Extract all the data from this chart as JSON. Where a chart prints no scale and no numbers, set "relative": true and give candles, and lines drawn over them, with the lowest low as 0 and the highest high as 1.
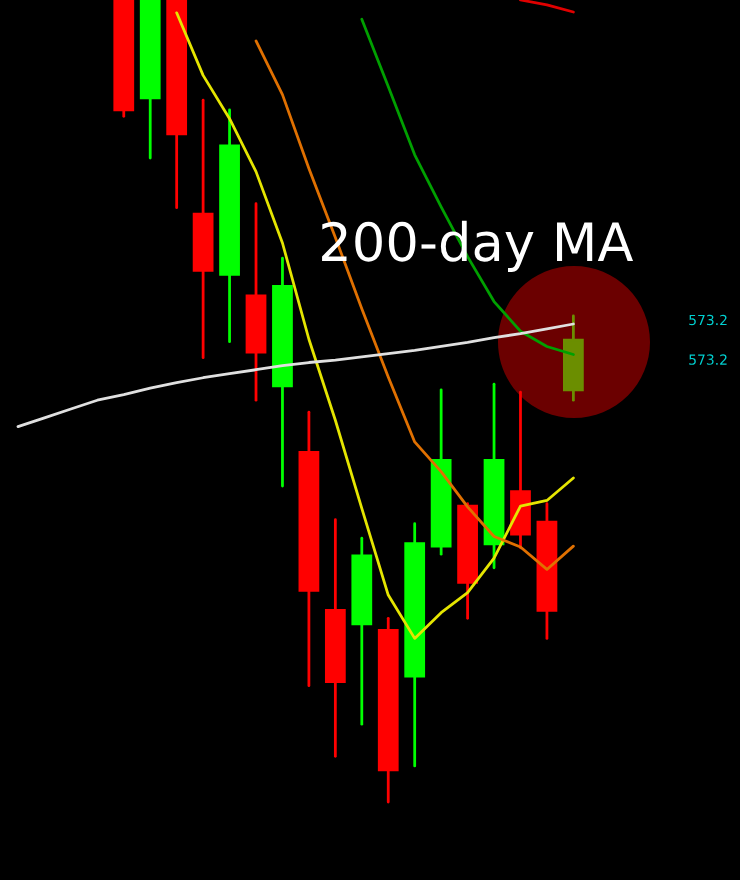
{
  "chart_data": {
    "type": "candlestick",
    "relative": true,
    "categories": [
      null,
      null,
      null,
      null,
      null,
      null,
      null,
      null,
      null,
      null,
      null,
      null,
      null,
      null,
      null,
      null,
      null,
      null,
      null,
      null,
      null,
      null
    ],
    "ohlc": [
      null,
      null,
      null,
      null,
      [
        1.0,
        1.0,
        0.855,
        0.863
      ],
      [
        0.878,
        1.0,
        0.803,
        1.0
      ],
      [
        1.0,
        1.0,
        0.741,
        0.833
      ],
      [
        0.733,
        0.875,
        0.554,
        0.663
      ],
      [
        0.658,
        0.863,
        0.574,
        0.818
      ],
      [
        0.631,
        0.746,
        0.501,
        0.561
      ],
      [
        0.519,
        0.678,
        0.394,
        0.643
      ],
      [
        0.436,
        0.486,
        0.145,
        0.264
      ],
      [
        0.239,
        0.352,
        0.057,
        0.15
      ],
      [
        0.222,
        0.329,
        0.097,
        0.307
      ],
      [
        0.214,
        0.229,
        0.0,
        0.04
      ],
      [
        0.157,
        0.347,
        0.045,
        0.322
      ],
      [
        0.319,
        0.514,
        0.309,
        0.426
      ],
      [
        0.369,
        0.372,
        0.229,
        0.274
      ],
      [
        0.322,
        0.521,
        0.292,
        0.426
      ],
      [
        0.387,
        0.511,
        0.317,
        0.334
      ],
      [
        0.349,
        0.372,
        0.204,
        0.239
      ],
      [
        0.514,
        0.606,
        0.501,
        0.576
      ]
    ],
    "colors": [
      null,
      null,
      null,
      null,
      "#ff0000",
      "#00ff00",
      "#ff0000",
      "#ff0000",
      "#00ff00",
      "#ff0000",
      "#00ff00",
      "#ff0000",
      "#ff0000",
      "#00ff00",
      "#ff0000",
      "#00ff00",
      "#00ff00",
      "#ff0000",
      "#00ff00",
      "#ff0000",
      "#ff0000",
      "#6b8e00"
    ],
    "series": [
      {
        "type": "line",
        "color": "#e5e500",
        "values": [
          null,
          null,
          null,
          null,
          null,
          null,
          0.984,
          0.906,
          0.852,
          0.786,
          0.697,
          0.577,
          0.476,
          0.366,
          0.258,
          0.204,
          0.236,
          0.261,
          0.304,
          0.369,
          0.376,
          0.404
        ]
      },
      {
        "type": "line",
        "color": "#e07000",
        "values": [
          null,
          null,
          null,
          null,
          null,
          null,
          null,
          null,
          null,
          0.949,
          0.882,
          0.79,
          0.704,
          0.615,
          0.53,
          0.449,
          0.412,
          0.368,
          0.331,
          0.318,
          0.29,
          0.319
        ]
      },
      {
        "type": "line",
        "color": "#00a000",
        "values": [
          null,
          null,
          null,
          null,
          null,
          null,
          null,
          null,
          null,
          null,
          null,
          null,
          null,
          0.976,
          0.892,
          0.807,
          0.742,
          0.68,
          0.624,
          0.587,
          0.568,
          0.558
        ]
      },
      {
        "type": "line",
        "color": "#e0e0e0",
        "values": [
          0.468,
          0.479,
          0.49,
          0.501,
          0.508,
          0.516,
          0.523,
          0.529,
          0.534,
          0.539,
          0.544,
          0.548,
          0.551,
          0.555,
          0.559,
          0.563,
          0.568,
          0.573,
          0.579,
          0.584,
          0.59,
          0.596
        ]
      },
      {
        "type": "line",
        "color": "#e00000",
        "values": [
          null,
          null,
          null,
          null,
          null,
          null,
          null,
          null,
          null,
          null,
          null,
          null,
          null,
          null,
          null,
          null,
          null,
          null,
          null,
          1.0,
          0.994,
          0.985
        ]
      }
    ],
    "annotations": [
      "200-day MA",
      "573.2",
      "573.2"
    ]
  }
}
